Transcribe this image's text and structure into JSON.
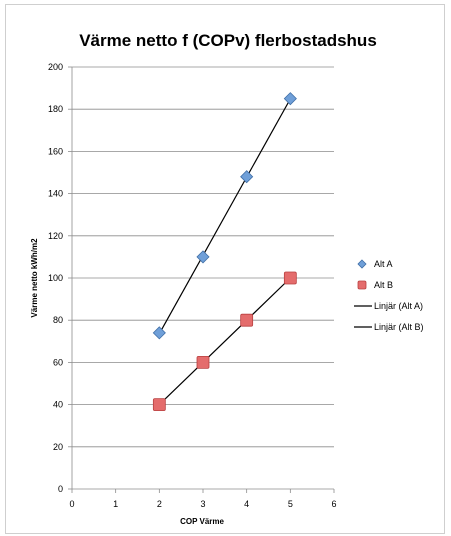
{
  "chart_data": {
    "type": "scatter",
    "title": "Värme netto f (COPv) flerbostadshus",
    "xlabel": "COP Värme",
    "ylabel": "Värme netto kWh/m2",
    "xlim": [
      0,
      6
    ],
    "ylim": [
      0,
      200
    ],
    "x_ticks": [
      "0",
      "1",
      "2",
      "3",
      "4",
      "5",
      "6"
    ],
    "y_ticks": [
      "0",
      "20",
      "40",
      "60",
      "80",
      "100",
      "120",
      "140",
      "160",
      "180",
      "200"
    ],
    "grid": "horizontal",
    "legend_position": "right",
    "series": [
      {
        "name": "Alt A",
        "marker": "diamond",
        "color": "#6f9fd8",
        "x": [
          2,
          3,
          4,
          5
        ],
        "y": [
          74,
          110,
          148,
          185
        ]
      },
      {
        "name": "Alt B",
        "marker": "square",
        "color": "#e46c6c",
        "x": [
          2,
          3,
          4,
          5
        ],
        "y": [
          40,
          60,
          80,
          100
        ]
      }
    ],
    "trendlines": [
      {
        "name": "Linjär (Alt A)",
        "of": "Alt A",
        "color": "#000000"
      },
      {
        "name": "Linjär (Alt B)",
        "of": "Alt B",
        "color": "#000000"
      }
    ]
  }
}
